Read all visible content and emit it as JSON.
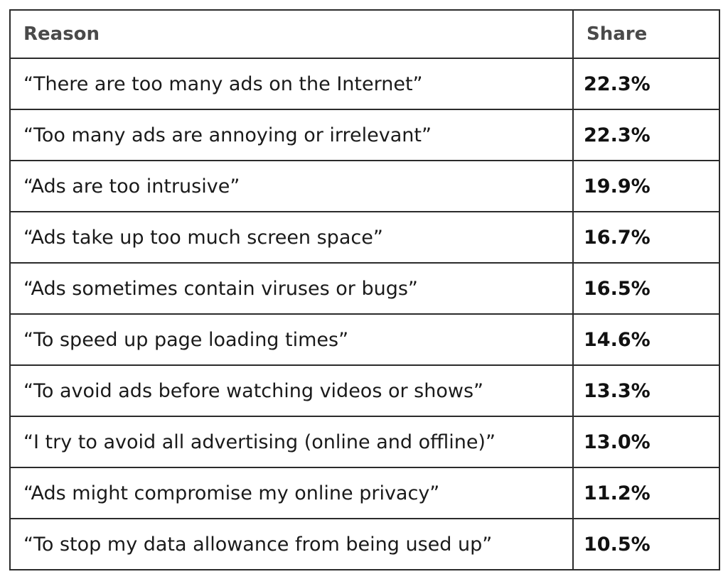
{
  "table": {
    "headers": {
      "reason": "Reason",
      "share": "Share"
    },
    "rows": [
      {
        "reason": "“There are too many ads on the Internet”",
        "share": "22.3%"
      },
      {
        "reason": "“Too many ads are annoying or irrelevant”",
        "share": "22.3%"
      },
      {
        "reason": "“Ads are too intrusive”",
        "share": "19.9%"
      },
      {
        "reason": "“Ads take up too much screen space”",
        "share": "16.7%"
      },
      {
        "reason": "“Ads sometimes contain viruses or bugs”",
        "share": "16.5%"
      },
      {
        "reason": "“To speed up page loading times”",
        "share": "14.6%"
      },
      {
        "reason": "“To avoid ads before watching videos or shows”",
        "share": "13.3%"
      },
      {
        "reason": "“I try to avoid all advertising (online and offline)”",
        "share": "13.0%"
      },
      {
        "reason": "“Ads might compromise my online privacy”",
        "share": "11.2%"
      },
      {
        "reason": "“To stop my data allowance from being used up”",
        "share": "10.5%"
      }
    ]
  }
}
